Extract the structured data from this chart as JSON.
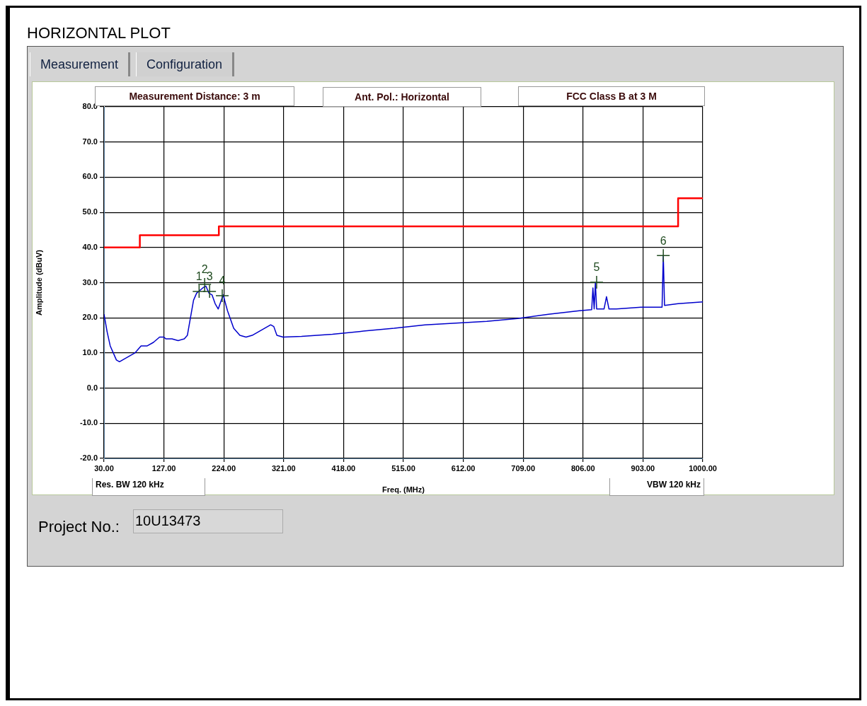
{
  "chart_data": {
    "type": "line",
    "title": "HORIZONTAL PLOT",
    "xlabel": "Freq. (MHz)",
    "ylabel": "Amplitude (dBuV)",
    "xlim": [
      30,
      1000
    ],
    "xticks": [
      {
        "value": 30,
        "label": "30.00"
      },
      {
        "value": 127,
        "label": "127.00"
      },
      {
        "value": 224,
        "label": "224.00"
      },
      {
        "value": 321,
        "label": "321.00"
      },
      {
        "value": 418,
        "label": "418.00"
      },
      {
        "value": 515,
        "label": "515.00"
      },
      {
        "value": 612,
        "label": "612.00"
      },
      {
        "value": 709,
        "label": "709.00"
      },
      {
        "value": 806,
        "label": "806.00"
      },
      {
        "value": 903,
        "label": "903.00"
      },
      {
        "value": 1000,
        "label": "1000.00"
      }
    ],
    "ylim": [
      -20,
      80
    ],
    "yticks": [
      {
        "value": -20,
        "label": "-20.0"
      },
      {
        "value": -10,
        "label": "-10.0"
      },
      {
        "value": 0,
        "label": "0.0"
      },
      {
        "value": 10,
        "label": "10.0"
      },
      {
        "value": 20,
        "label": "20.0"
      },
      {
        "value": 30,
        "label": "30.0"
      },
      {
        "value": 40,
        "label": "40.0"
      },
      {
        "value": 50,
        "label": "50.0"
      },
      {
        "value": 60,
        "label": "60.0"
      },
      {
        "value": 70,
        "label": "70.0"
      },
      {
        "value": 80,
        "label": "80.0"
      }
    ],
    "grid": true,
    "legend": false,
    "marker": "none",
    "line_style": "solid",
    "series": [
      {
        "type": "line",
        "color": "#0000cc",
        "x": [
          30,
          35,
          40,
          45,
          50,
          55,
          60,
          70,
          80,
          85,
          90,
          100,
          110,
          120,
          127,
          130,
          140,
          150,
          160,
          165,
          170,
          175,
          180,
          190,
          195,
          200,
          205,
          210,
          215,
          220,
          223,
          230,
          240,
          250,
          260,
          270,
          280,
          290,
          300,
          305,
          310,
          320,
          350,
          400,
          450,
          500,
          550,
          600,
          650,
          700,
          750,
          800,
          820,
          822,
          824,
          826,
          828,
          840,
          844,
          848,
          860,
          900,
          934,
          936,
          938,
          960,
          1000
        ],
        "values": [
          21,
          16,
          12,
          10,
          8,
          7.5,
          8,
          9,
          10,
          11,
          12,
          12,
          13,
          14.5,
          14.5,
          14,
          14,
          13.5,
          14,
          15,
          20,
          25,
          27,
          28.5,
          29,
          27,
          26.5,
          24,
          22.5,
          25,
          26.5,
          22,
          17,
          15,
          14.5,
          15,
          16,
          17,
          18,
          17.5,
          15,
          14.5,
          14.7,
          15.3,
          16.2,
          17,
          18,
          18.5,
          19,
          19.8,
          21,
          22,
          22.3,
          28.5,
          22.5,
          30,
          22.5,
          22.5,
          26,
          22.5,
          22.5,
          23,
          23,
          37.7,
          23.5,
          24,
          24.5
        ]
      },
      {
        "type": "step",
        "color": "#ff0000",
        "x": [
          30,
          88,
          216,
          960,
          1000
        ],
        "values": [
          40,
          43.5,
          46,
          54,
          54
        ]
      }
    ],
    "annotations": [
      "Measurement",
      "Configuration",
      "Measurement Distance: 3 m",
      "Ant. Pol.: Horizontal",
      "FCC Class B at 3 M",
      "Res. BW 120 kHz",
      "VBW 120 kHz",
      "Project No.:",
      "10U13473",
      {
        "text": "1",
        "x": 184,
        "y": 27.5
      },
      {
        "text": "2",
        "x": 193,
        "y": 29.5
      },
      {
        "text": "3",
        "x": 201,
        "y": 27.5
      },
      {
        "text": "4",
        "x": 221.5,
        "y": 26.3
      },
      {
        "text": "5",
        "x": 828,
        "y": 30.1
      },
      {
        "text": "6",
        "x": 936,
        "y": 37.7
      }
    ]
  }
}
